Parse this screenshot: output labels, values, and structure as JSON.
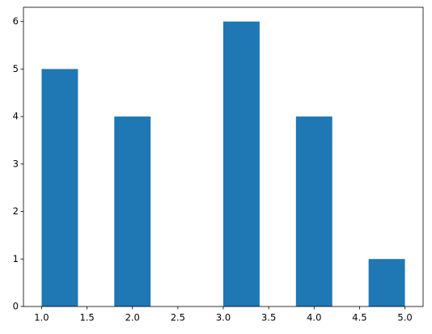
{
  "chart_data": {
    "type": "histogram",
    "bins": [
      1.0,
      1.4,
      1.8,
      2.2,
      2.6,
      3.0,
      3.4,
      3.8,
      4.2,
      4.6,
      5.0
    ],
    "values": [
      5,
      0,
      4,
      0,
      0,
      6,
      0,
      4,
      0,
      1
    ],
    "color": "#1f77b4",
    "xlim": [
      0.8,
      5.2
    ],
    "xticks": [
      {
        "value": 1.0,
        "label": "1.0"
      },
      {
        "value": 1.5,
        "label": "1.5"
      },
      {
        "value": 2.0,
        "label": "2.0"
      },
      {
        "value": 2.5,
        "label": "2.5"
      },
      {
        "value": 3.0,
        "label": "3.0"
      },
      {
        "value": 3.5,
        "label": "3.5"
      },
      {
        "value": 4.0,
        "label": "4.0"
      },
      {
        "value": 4.5,
        "label": "4.5"
      },
      {
        "value": 5.0,
        "label": "5.0"
      }
    ],
    "ylim": [
      0,
      6.3
    ],
    "yticks": [
      0,
      1,
      2,
      3,
      4,
      5,
      6
    ],
    "grid": false
  }
}
